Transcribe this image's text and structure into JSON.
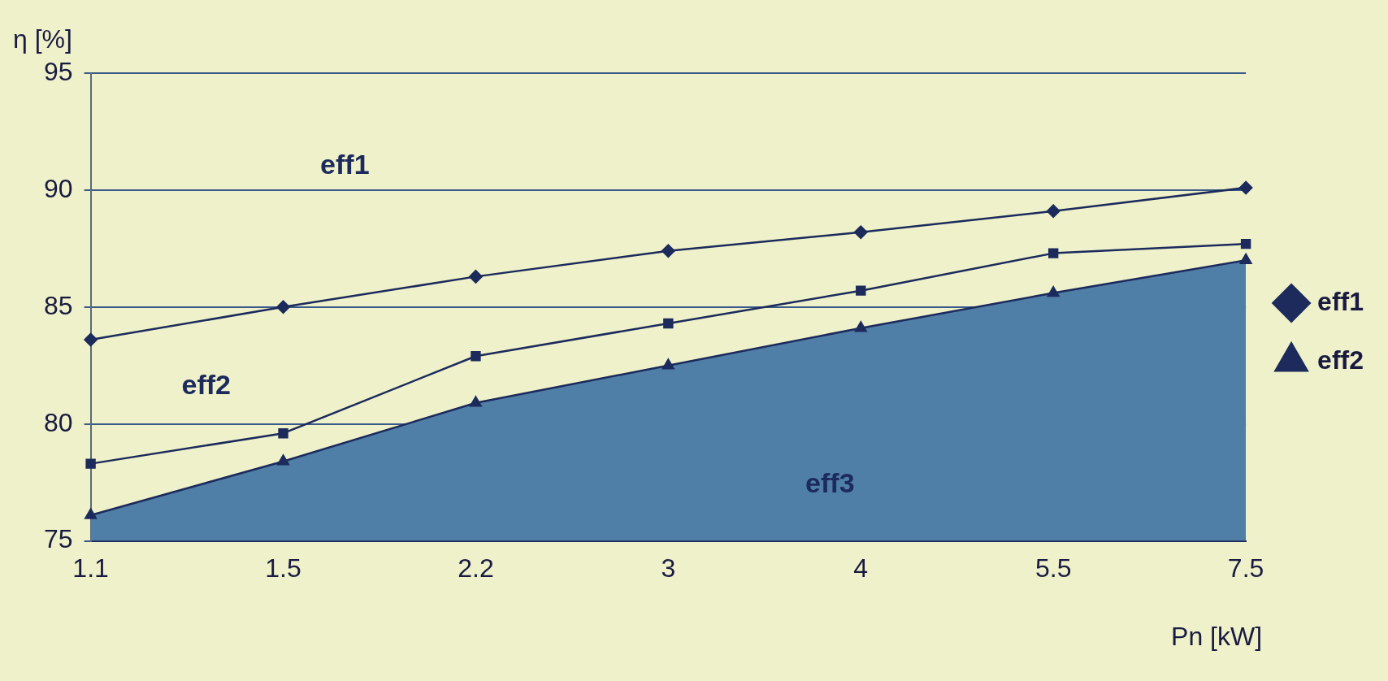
{
  "chart_data": {
    "type": "line",
    "xlabel": "Pn [kW]",
    "ylabel": "η [%]",
    "categories": [
      "1.1",
      "1.5",
      "2.2",
      "3",
      "4",
      "5.5",
      "7.5"
    ],
    "series": [
      {
        "name": "eff1",
        "type": "line",
        "color": "#1c2a5c",
        "marker": "diamond",
        "values": [
          83.6,
          85.0,
          86.3,
          87.4,
          88.2,
          89.1,
          90.1
        ]
      },
      {
        "color": "#1c2a5c",
        "marker": "square",
        "values": [
          78.3,
          79.6,
          82.9,
          84.3,
          85.7,
          87.3,
          87.7
        ]
      },
      {
        "name": "eff2",
        "type": "area",
        "color": "#1c2a5c",
        "marker": "triangle",
        "values": [
          76.1,
          78.4,
          80.9,
          82.5,
          84.1,
          85.6,
          87.0
        ]
      }
    ],
    "ylim": [
      75,
      95
    ],
    "yticks": [
      75,
      80,
      85,
      90,
      95
    ],
    "grid": "y",
    "legend": "right",
    "line_style": "solid",
    "annotations": [
      "eff1",
      "eff2",
      "eff3"
    ]
  }
}
